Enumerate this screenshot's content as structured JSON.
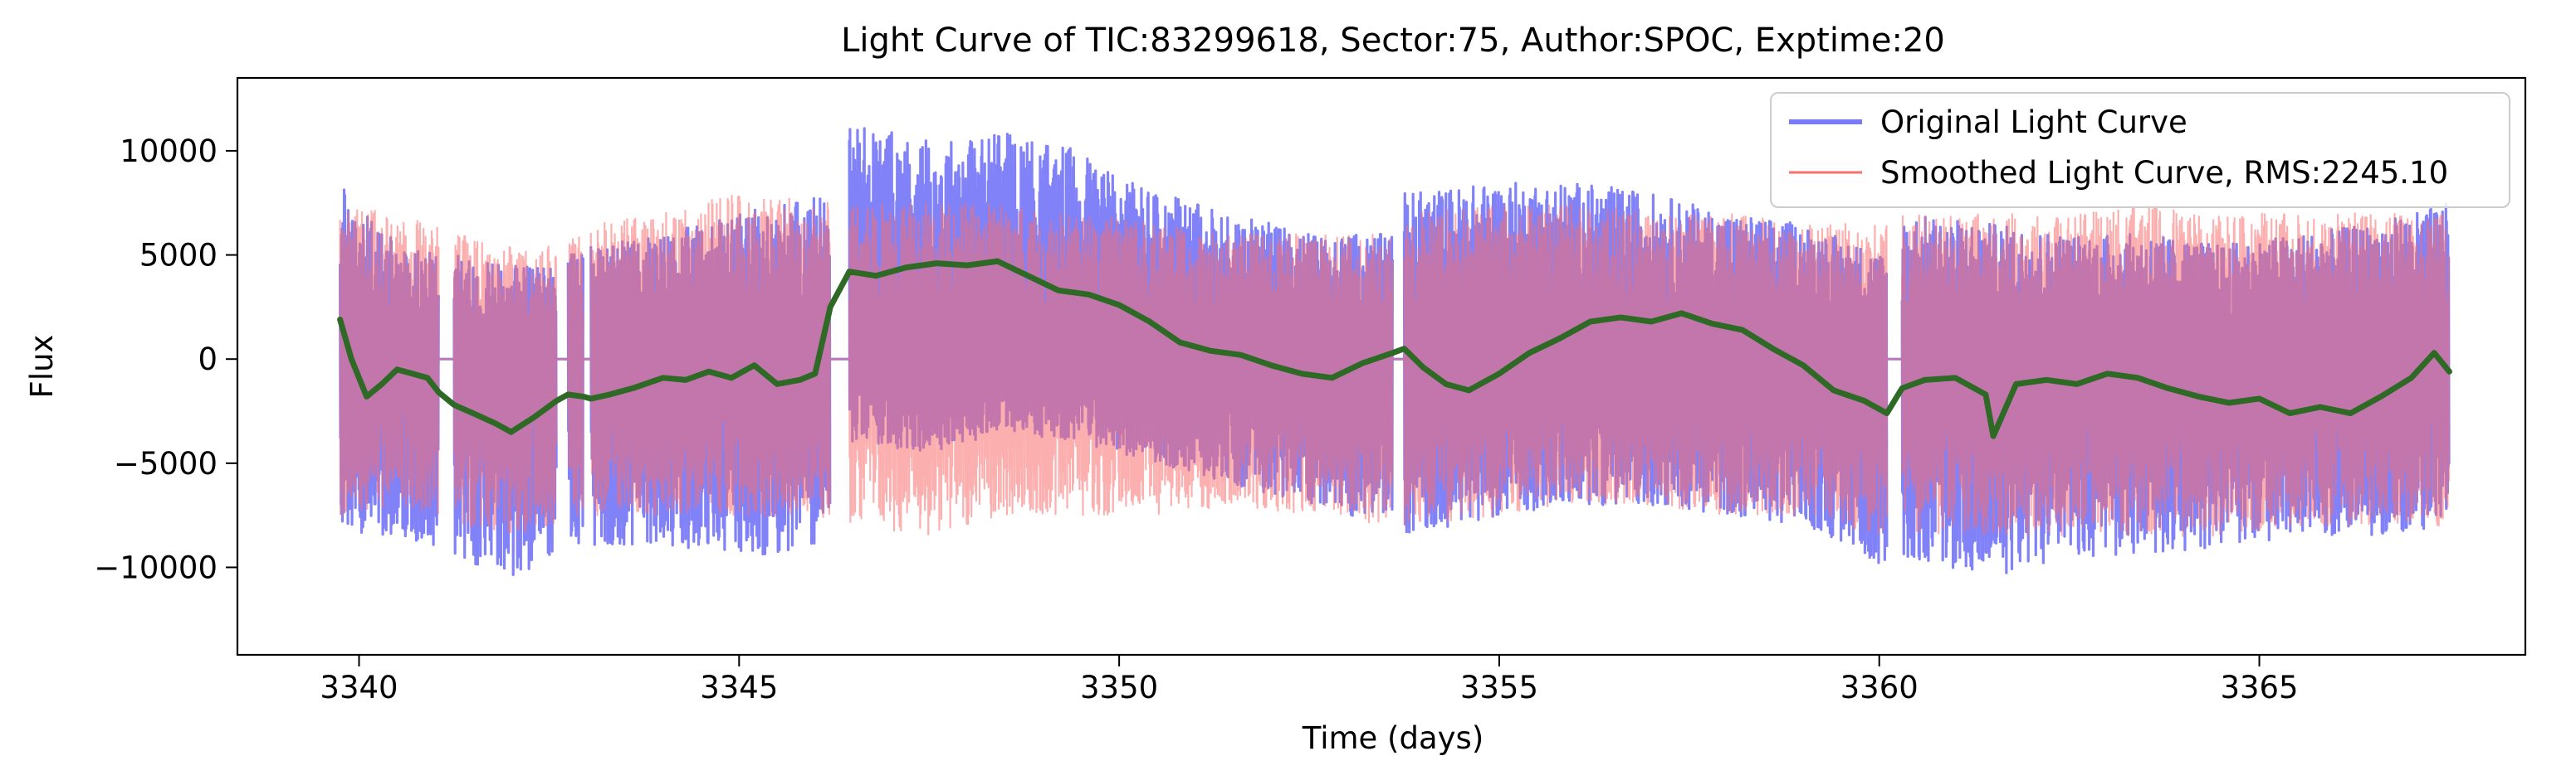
{
  "chart_data": {
    "type": "line",
    "title": "Light Curve of TIC:83299618, Sector:75, Author:SPOC, Exptime:20",
    "xlabel": "Time (days)",
    "ylabel": "Flux",
    "xlim": [
      3338.4,
      3368.5
    ],
    "ylim": [
      -14200,
      13500
    ],
    "x_ticks": [
      3340,
      3345,
      3350,
      3355,
      3360,
      3365
    ],
    "y_ticks": [
      -10000,
      -5000,
      0,
      5000,
      10000
    ],
    "y_tick_labels": [
      "−10000",
      "−5000",
      "0",
      "5000",
      "10000"
    ],
    "grid": false,
    "legend_position": "top-right",
    "segments": [
      [
        3339.75,
        3341.05
      ],
      [
        3341.25,
        3342.6
      ],
      [
        3342.75,
        3342.95
      ],
      [
        3343.05,
        3346.2
      ],
      [
        3346.45,
        3353.6
      ],
      [
        3353.75,
        3360.1
      ],
      [
        3360.3,
        3367.5
      ]
    ],
    "series": [
      {
        "name": "Original Light Curve",
        "color": "#7b7bf8",
        "kind": "noise-band",
        "envelope": {
          "t": [
            3339.75,
            3340.5,
            3341.05,
            3341.25,
            3342.0,
            3342.6,
            3343.05,
            3344.0,
            3345.0,
            3346.2,
            3346.45,
            3347.5,
            3348.5,
            3349.5,
            3350.5,
            3351.5,
            3352.5,
            3353.6,
            3353.75,
            3355.0,
            3356.0,
            3357.0,
            3358.0,
            3359.0,
            3360.1,
            3360.3,
            3361.5,
            3362.5,
            3363.5,
            3364.5,
            3365.5,
            3366.5,
            3367.5
          ],
          "upper": [
            8500,
            5500,
            5000,
            5000,
            4500,
            4800,
            5500,
            6000,
            7000,
            8000,
            11500,
            10500,
            11000,
            10000,
            8000,
            7000,
            6000,
            6000,
            8000,
            8500,
            8500,
            8000,
            7000,
            6500,
            5000,
            7000,
            6500,
            6000,
            6000,
            5500,
            6000,
            6500,
            7500
          ],
          "lower": [
            -8500,
            -8500,
            -9000,
            -9500,
            -10500,
            -9500,
            -9000,
            -9000,
            -9500,
            -9000,
            -4000,
            -4500,
            -3500,
            -4000,
            -5000,
            -6000,
            -7000,
            -8000,
            -8500,
            -7500,
            -7000,
            -7000,
            -7500,
            -8000,
            -10000,
            -9500,
            -10500,
            -9500,
            -9500,
            -9000,
            -8500,
            -8500,
            -8000
          ]
        }
      },
      {
        "name": "Smoothed Light Curve, RMS:2245.10",
        "color": "#fa6e6e",
        "kind": "noise-band",
        "envelope": {
          "t": [
            3339.75,
            3340.5,
            3341.05,
            3341.25,
            3342.0,
            3342.6,
            3343.05,
            3344.0,
            3345.0,
            3346.2,
            3346.45,
            3347.5,
            3348.5,
            3349.5,
            3350.5,
            3351.5,
            3352.5,
            3353.6,
            3353.75,
            3355.0,
            3356.0,
            3357.0,
            3358.0,
            3359.0,
            3360.1,
            3360.3,
            3361.5,
            3362.5,
            3363.5,
            3364.5,
            3365.5,
            3366.5,
            3367.5
          ],
          "upper": [
            7500,
            7000,
            6500,
            6000,
            5500,
            5500,
            6500,
            7000,
            8000,
            7500,
            7500,
            7500,
            7500,
            7000,
            6500,
            6000,
            6000,
            6000,
            7000,
            7500,
            7500,
            7000,
            7000,
            6500,
            6500,
            7000,
            7000,
            7000,
            7500,
            7000,
            7000,
            7000,
            7000
          ],
          "lower": [
            -7500,
            -7000,
            -7500,
            -8000,
            -8500,
            -8000,
            -7500,
            -7500,
            -7500,
            -8000,
            -8000,
            -8500,
            -7500,
            -7500,
            -7500,
            -7000,
            -7500,
            -8000,
            -8000,
            -7500,
            -7000,
            -7000,
            -7500,
            -7500,
            -8500,
            -8500,
            -8500,
            -8500,
            -8500,
            -8500,
            -8000,
            -8000,
            -8000
          ]
        }
      },
      {
        "name": "",
        "color": "#2e6a25",
        "kind": "line",
        "x": [
          3339.75,
          3339.9,
          3340.1,
          3340.3,
          3340.5,
          3340.7,
          3340.9,
          3341.05,
          3341.25,
          3341.5,
          3341.8,
          3342.0,
          3342.3,
          3342.6,
          3342.75,
          3342.95,
          3343.05,
          3343.3,
          3343.6,
          3344.0,
          3344.3,
          3344.6,
          3344.9,
          3345.2,
          3345.5,
          3345.8,
          3346.0,
          3346.2,
          3346.45,
          3346.8,
          3347.2,
          3347.6,
          3348.0,
          3348.4,
          3348.8,
          3349.2,
          3349.6,
          3350.0,
          3350.4,
          3350.8,
          3351.2,
          3351.6,
          3352.0,
          3352.4,
          3352.8,
          3353.2,
          3353.6,
          3353.75,
          3354.0,
          3354.3,
          3354.6,
          3355.0,
          3355.4,
          3355.8,
          3356.2,
          3356.6,
          3357.0,
          3357.4,
          3357.8,
          3358.2,
          3358.6,
          3359.0,
          3359.4,
          3359.8,
          3360.1,
          3360.3,
          3360.6,
          3361.0,
          3361.4,
          3361.5,
          3361.8,
          3362.2,
          3362.6,
          3363.0,
          3363.4,
          3363.8,
          3364.2,
          3364.6,
          3365.0,
          3365.4,
          3365.8,
          3366.2,
          3366.6,
          3367.0,
          3367.3,
          3367.5
        ],
        "y": [
          1900,
          0,
          -1800,
          -1200,
          -500,
          -700,
          -900,
          -1600,
          -2200,
          -2600,
          -3100,
          -3500,
          -2800,
          -2000,
          -1700,
          -1800,
          -1900,
          -1700,
          -1400,
          -900,
          -1000,
          -600,
          -900,
          -300,
          -1200,
          -1000,
          -700,
          2500,
          4200,
          4000,
          4400,
          4600,
          4500,
          4700,
          4000,
          3300,
          3100,
          2600,
          1800,
          800,
          400,
          200,
          -300,
          -700,
          -900,
          -200,
          300,
          500,
          -400,
          -1200,
          -1500,
          -700,
          300,
          1000,
          1800,
          2000,
          1800,
          2200,
          1700,
          1400,
          500,
          -300,
          -1500,
          -2000,
          -2600,
          -1400,
          -1000,
          -900,
          -1700,
          -3700,
          -1200,
          -1000,
          -1200,
          -700,
          -900,
          -1400,
          -1800,
          -2100,
          -1900,
          -2600,
          -2300,
          -2600,
          -1800,
          -900,
          300,
          -600
        ]
      }
    ]
  }
}
